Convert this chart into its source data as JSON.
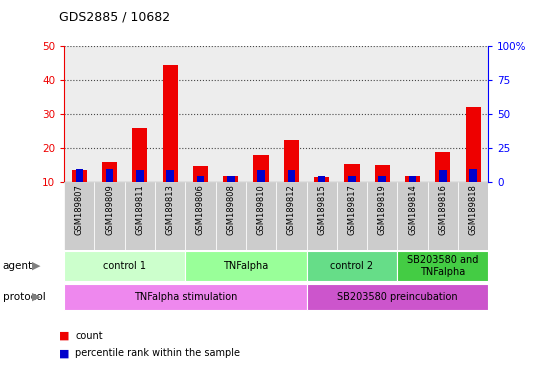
{
  "title": "GDS2885 / 10682",
  "samples": [
    "GSM189807",
    "GSM189809",
    "GSM189811",
    "GSM189813",
    "GSM189806",
    "GSM189808",
    "GSM189810",
    "GSM189812",
    "GSM189815",
    "GSM189817",
    "GSM189819",
    "GSM189814",
    "GSM189816",
    "GSM189818"
  ],
  "counts": [
    13.5,
    16.0,
    26.0,
    44.5,
    14.8,
    12.0,
    18.0,
    22.5,
    11.5,
    15.5,
    15.0,
    12.0,
    19.0,
    32.0
  ],
  "percentiles": [
    10,
    10,
    9,
    9,
    5,
    5,
    9,
    9,
    5,
    5,
    5,
    5,
    9,
    10
  ],
  "ylim_left": [
    10,
    50
  ],
  "ylim_right": [
    0,
    100
  ],
  "yticks_left": [
    10,
    20,
    30,
    40,
    50
  ],
  "yticks_right": [
    0,
    25,
    50,
    75,
    100
  ],
  "ytick_labels_right": [
    "0",
    "25",
    "50",
    "75",
    "100%"
  ],
  "agent_groups": [
    {
      "label": "control 1",
      "start": 0,
      "end": 3,
      "color": "#ccffcc"
    },
    {
      "label": "TNFalpha",
      "start": 4,
      "end": 7,
      "color": "#99ff99"
    },
    {
      "label": "control 2",
      "start": 8,
      "end": 10,
      "color": "#66dd88"
    },
    {
      "label": "SB203580 and\nTNFalpha",
      "start": 11,
      "end": 13,
      "color": "#44cc44"
    }
  ],
  "protocol_groups": [
    {
      "label": "TNFalpha stimulation",
      "start": 0,
      "end": 7,
      "color": "#ee88ee"
    },
    {
      "label": "SB203580 preincubation",
      "start": 8,
      "end": 13,
      "color": "#cc55cc"
    }
  ],
  "red_color": "#ee0000",
  "blue_color": "#0000cc",
  "grid_color": "#000000",
  "label_bg": "#cccccc"
}
